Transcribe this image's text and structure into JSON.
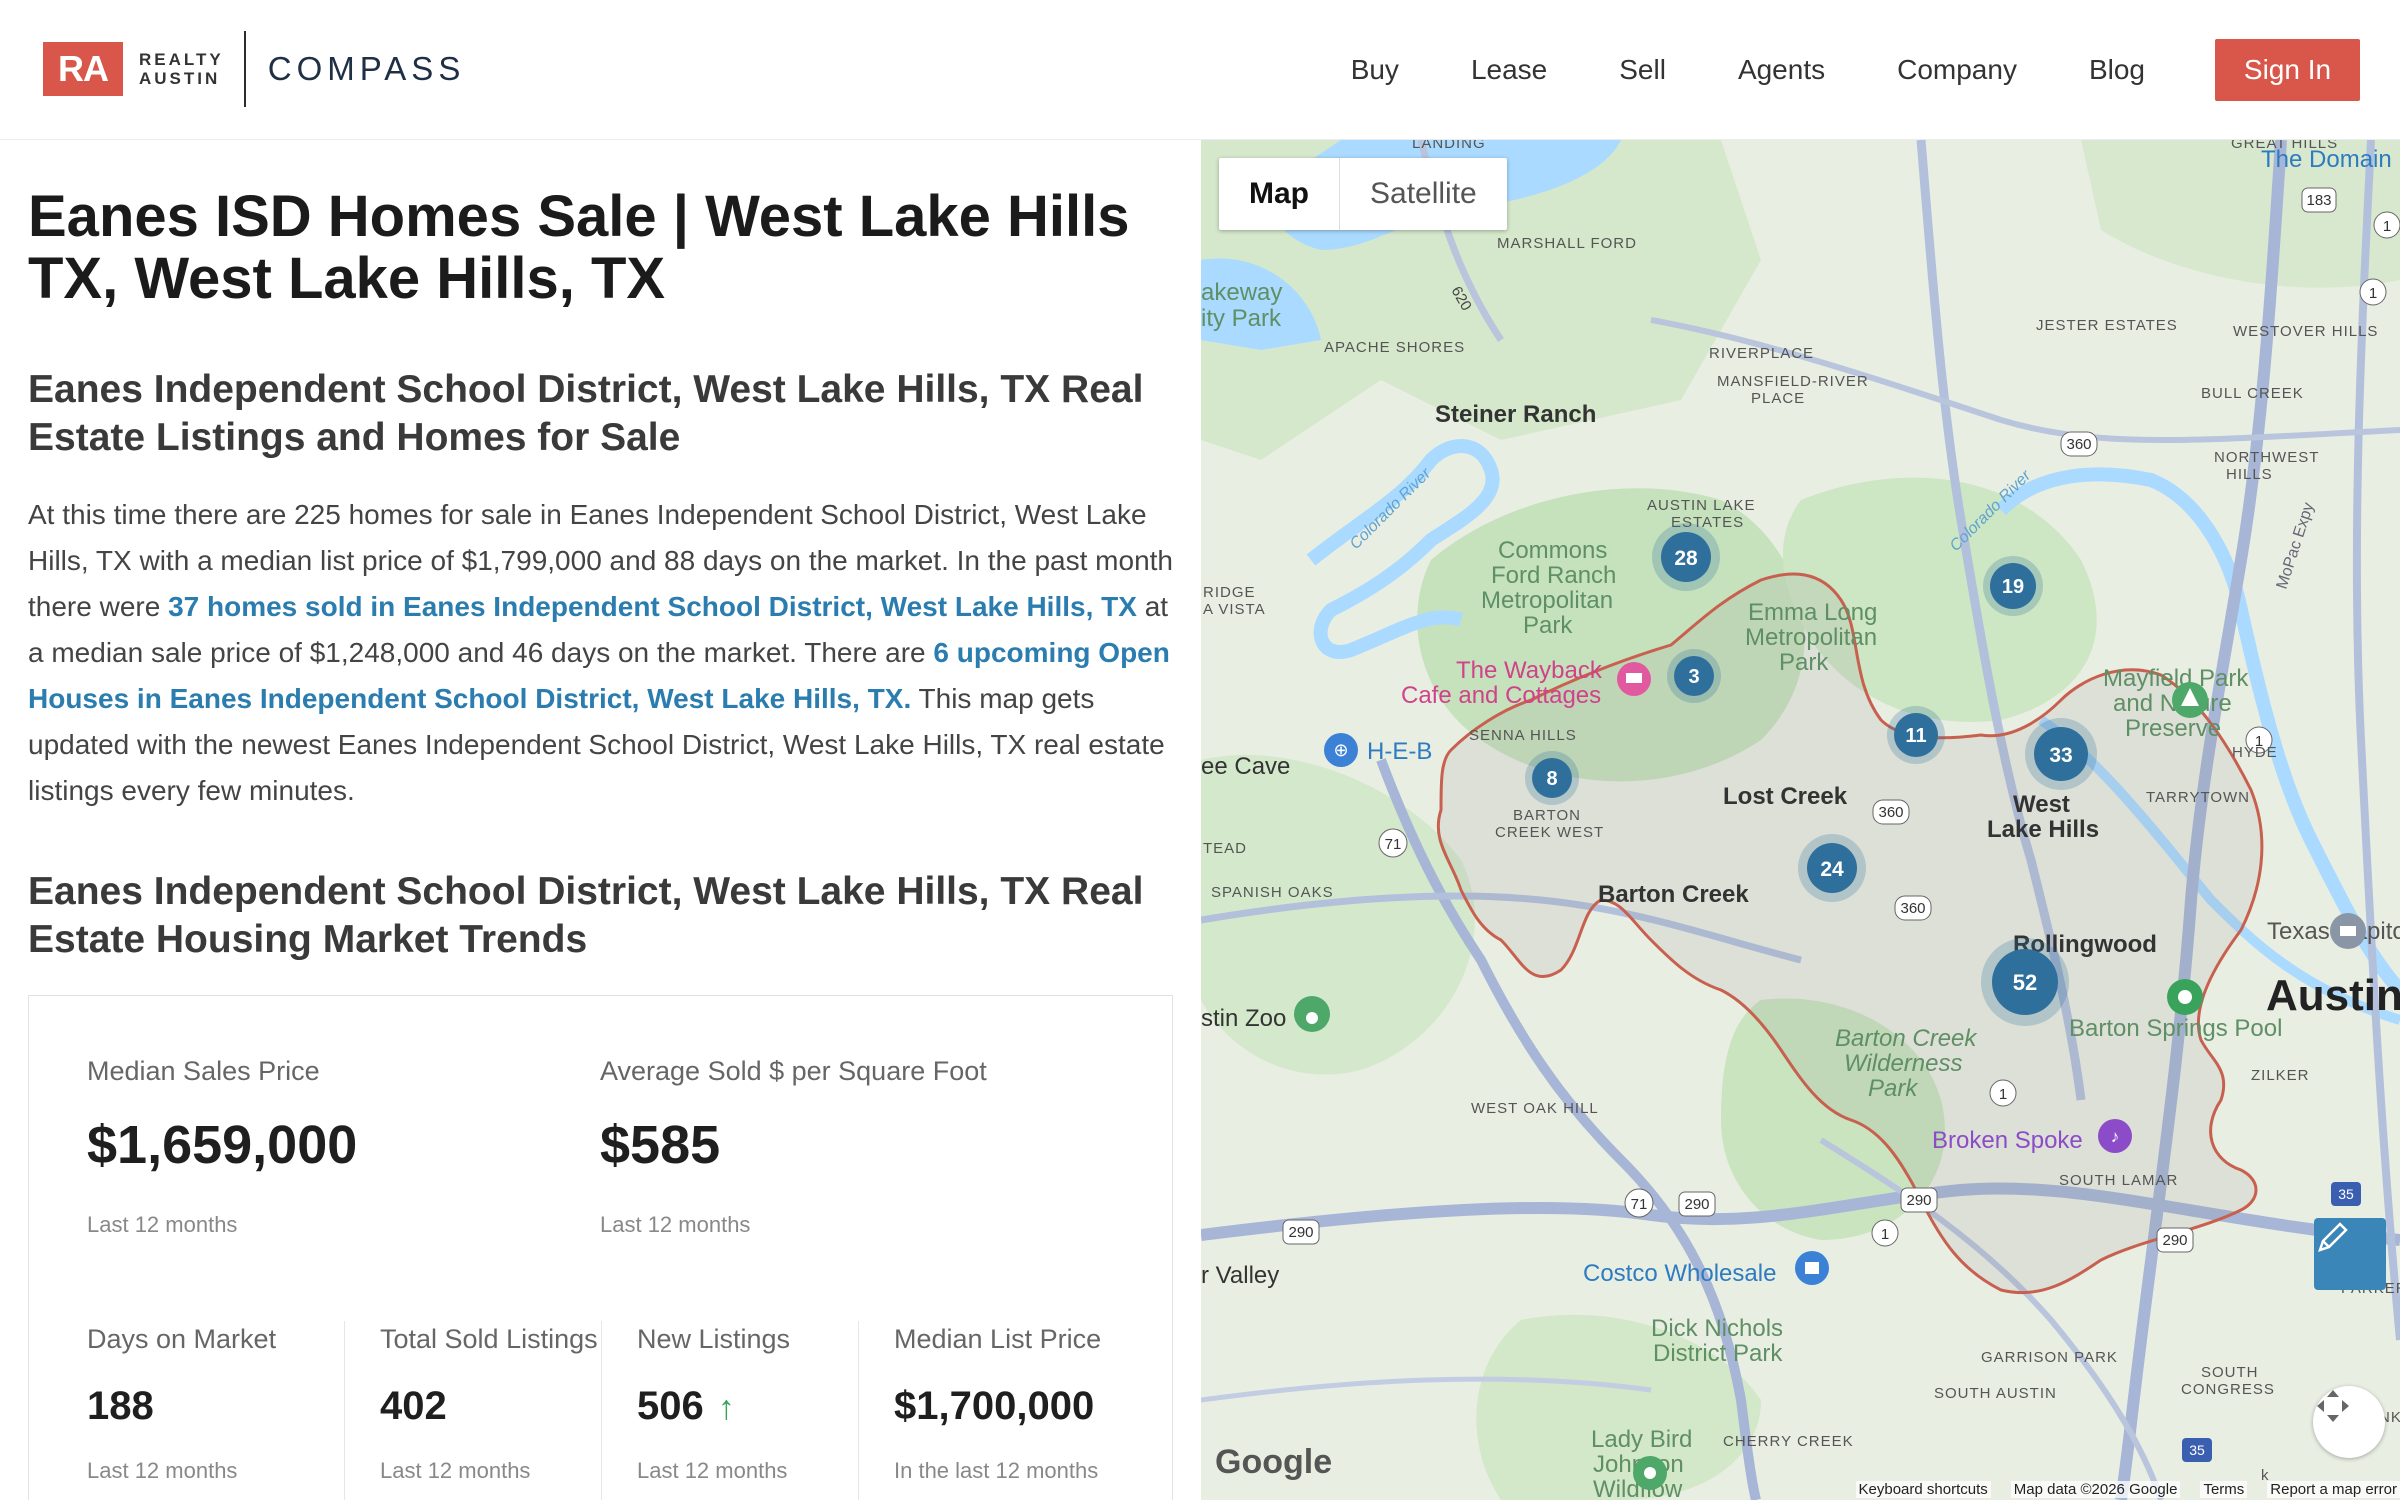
{
  "header": {
    "logo": {
      "ra": "RA",
      "realty_line1": "REALTY",
      "realty_line2": "AUSTIN",
      "compass": "COMPASS"
    },
    "nav": [
      "Buy",
      "Lease",
      "Sell",
      "Agents",
      "Company",
      "Blog"
    ],
    "signin_label": "Sign In"
  },
  "content": {
    "title": "Eanes ISD Homes Sale | West Lake Hills TX, West Lake Hills, TX",
    "subtitle": "Eanes Independent School District, West Lake Hills, TX Real Estate Listings and Homes for Sale",
    "para": {
      "t1": "At this time there are 225 homes for sale in Eanes Independent School District, West Lake Hills, TX with a median list price of $1,799,000 and 88 days on the market. In the past month there were ",
      "link1": "37 homes sold in Eanes Independent School District, West Lake Hills, TX",
      "t2": " at a median sale price of $1,248,000 and 46 days on the market. There are ",
      "link2": "6 upcoming Open Houses in Eanes Independent School District, West Lake Hills, TX.",
      "t3": " This map gets updated with the newest Eanes Independent School District, West Lake Hills, TX real estate listings every few minutes."
    },
    "trends_title": "Eanes Independent School District, West Lake Hills, TX Real Estate Housing Market Trends"
  },
  "stats": {
    "median_sales_price": {
      "label": "Median Sales Price",
      "value": "$1,659,000",
      "sub": "Last 12 months"
    },
    "avg_sold_sqft": {
      "label": "Average Sold $ per Square Foot",
      "value": "$585",
      "sub": "Last 12 months"
    },
    "days_on_market": {
      "label": "Days on Market",
      "value": "188",
      "sub": "Last 12 months"
    },
    "total_sold": {
      "label": "Total Sold Listings",
      "value": "402",
      "sub": "Last 12 months"
    },
    "new_listings": {
      "label": "New Listings",
      "value": "506",
      "sub": "Last 12 months",
      "trend": "up"
    },
    "median_list_price": {
      "label": "Median List Price",
      "value": "$1,700,000",
      "sub": "In the last 12 months"
    }
  },
  "map": {
    "toggle": {
      "map": "Map",
      "satellite": "Satellite"
    },
    "clusters": [
      "28",
      "3",
      "8",
      "19",
      "11",
      "33",
      "24",
      "52"
    ],
    "places": {
      "landing": "LANDING",
      "great_hills": "GREAT HILLS",
      "the_domain": "The Domain",
      "marshall_ford": "MARSHALL FORD",
      "lakeway": "akeway",
      "city_park": "ity Park",
      "apache_shores": "APACHE SHORES",
      "jester_estates": "JESTER ESTATES",
      "westover_hills": "WESTOVER HILLS",
      "riverplace": "RIVERPLACE",
      "mansfield1": "MANSFIELD-RIVER",
      "mansfield2": "PLACE",
      "steiner_ranch": "Steiner Ranch",
      "bull_creek": "BULL CREEK",
      "northwest1": "NORTHWEST",
      "northwest2": "HILLS",
      "austin_lake1": "AUSTIN LAKE",
      "austin_lake2": "ESTATES",
      "commons1": "Commons",
      "commons2": "Ford Ranch",
      "commons3": "Metropolitan",
      "commons4": "Park",
      "emma1": "Emma Long",
      "emma2": "Metropolitan",
      "emma3": "Park",
      "ridge": "RIDGE",
      "vista": "A VISTA",
      "wayback1": "The Wayback",
      "wayback2": "Cafe and Cottages",
      "mayfield1": "Mayfield Park",
      "mayfield2": "and Nature",
      "mayfield3": "Preserve",
      "senna_hills": "SENNA HILLS",
      "heb": "H-E-B",
      "bee_cave": "ee Cave",
      "hyde": "HYDE",
      "tarrytown": "TARRYTOWN",
      "barton_cw1": "BARTON",
      "barton_cw2": "CREEK WEST",
      "lost_creek": "Lost Creek",
      "west_lake1": "West",
      "west_lake2": "Lake Hills",
      "tead": "TEAD",
      "spanish_oaks": "SPANISH OAKS",
      "barton_creek": "Barton Creek",
      "rollingwood": "Rollingwood",
      "texas_capitol": "Texas Capitol",
      "stin_zoo": "stin Zoo",
      "barton_springs": "Barton Springs Pool",
      "austin": "Austin",
      "bcw1": "Barton Creek",
      "bcw2": "Wilderness",
      "bcw3": "Park",
      "zilker": "ZILKER",
      "west_oak_hill": "WEST OAK HILL",
      "broken_spoke": "Broken Spoke",
      "south_lamar": "SOUTH LAMAR",
      "r_valley": "r Valley",
      "costco": "Costco Wholesale",
      "dick1": "Dick Nichols",
      "dick2": "District Park",
      "garrison_park": "GARRISON PARK",
      "south_austin": "SOUTH AUSTIN",
      "south_congress1": "SOUTH",
      "south_congress2": "CONGRESS",
      "cherry_creek": "CHERRY CREEK",
      "franklin": "FRANKL",
      "lady1": "Lady Bird",
      "lady2": "Johnson",
      "lady3": "Wildflow",
      "parker": "PARKER",
      "colorado_river": "Colorado River",
      "colorado_river2": "Colorado River",
      "mopac": "MoPac Expy",
      "oak_hill_ck": "k"
    },
    "shields": [
      "183",
      "1",
      "1",
      "360",
      "620",
      "1",
      "71",
      "360",
      "360",
      "1",
      "71",
      "290",
      "290",
      "1",
      "290",
      "290",
      "35",
      "35"
    ],
    "footer": {
      "google": "Google",
      "keyboard": "Keyboard shortcuts",
      "data": "Map data ©2026 Google",
      "terms": "Terms",
      "report": "Report a map error"
    },
    "colors": {
      "water": "#aadaff",
      "park": "#c9e5c0",
      "road": "#9fb0cf",
      "boundary": "#c8604f",
      "cluster": "#2e6f9c"
    }
  }
}
